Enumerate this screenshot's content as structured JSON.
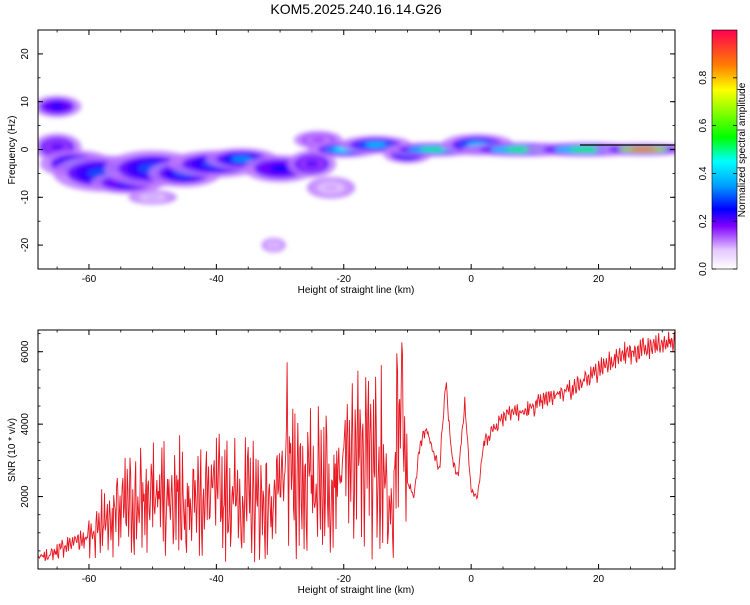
{
  "title": "KOM5.2025.240.16.14.G26",
  "chart_data": [
    {
      "type": "heatmap",
      "xlabel": "Height of straight line (km)",
      "ylabel": "Frequency (Hz)",
      "xlim": [
        -68,
        32
      ],
      "ylim": [
        -25,
        25
      ],
      "xticks": [
        -60,
        -40,
        -20,
        0,
        20
      ],
      "yticks": [
        -20,
        -10,
        0,
        10,
        20
      ],
      "colorbar": {
        "label": "Normalized spectral amplitude",
        "range": [
          0,
          1
        ],
        "ticks": [
          0.0,
          0.2,
          0.4,
          0.6,
          0.8
        ]
      },
      "blobs": [
        {
          "x": -65,
          "y": 9,
          "rx": 2,
          "ry": 1.2,
          "v": 0.25
        },
        {
          "x": -65,
          "y": 0.5,
          "rx": 2,
          "ry": 1.5,
          "v": 0.2
        },
        {
          "x": -62,
          "y": -3,
          "rx": 3,
          "ry": 1.5,
          "v": 0.3
        },
        {
          "x": -58,
          "y": -5,
          "rx": 4,
          "ry": 2,
          "v": 0.3
        },
        {
          "x": -54,
          "y": -7,
          "rx": 3,
          "ry": 1.2,
          "v": 0.25
        },
        {
          "x": -50,
          "y": -4,
          "rx": 4,
          "ry": 2,
          "v": 0.3
        },
        {
          "x": -45,
          "y": -5,
          "rx": 3,
          "ry": 1.5,
          "v": 0.3
        },
        {
          "x": -40,
          "y": -3,
          "rx": 4,
          "ry": 1.5,
          "v": 0.3
        },
        {
          "x": -36,
          "y": -2,
          "rx": 3,
          "ry": 1.2,
          "v": 0.35
        },
        {
          "x": -30,
          "y": -4,
          "rx": 3,
          "ry": 1.5,
          "v": 0.25
        },
        {
          "x": -25,
          "y": -3,
          "rx": 2,
          "ry": 1.5,
          "v": 0.2
        },
        {
          "x": -22,
          "y": -8,
          "rx": 2,
          "ry": 1.2,
          "v": 0.1
        },
        {
          "x": -24,
          "y": 2,
          "rx": 2,
          "ry": 1,
          "v": 0.15
        },
        {
          "x": -20,
          "y": 0,
          "rx": 3,
          "ry": 0.9,
          "v": 0.45
        },
        {
          "x": -15,
          "y": 1,
          "rx": 3,
          "ry": 1,
          "v": 0.4
        },
        {
          "x": -10,
          "y": -1,
          "rx": 2,
          "ry": 1,
          "v": 0.3
        },
        {
          "x": -6,
          "y": 0,
          "rx": 4,
          "ry": 0.8,
          "v": 0.5
        },
        {
          "x": 1,
          "y": 1,
          "rx": 3,
          "ry": 1.2,
          "v": 0.4
        },
        {
          "x": 8,
          "y": 0,
          "rx": 5,
          "ry": 0.8,
          "v": 0.55
        },
        {
          "x": 18,
          "y": 0,
          "rx": 5,
          "ry": 0.8,
          "v": 0.55
        },
        {
          "x": 27,
          "y": 0,
          "rx": 4,
          "ry": 0.7,
          "v": 0.9
        },
        {
          "x": -50,
          "y": -10,
          "rx": 2,
          "ry": 0.8,
          "v": 0.1
        },
        {
          "x": -31,
          "y": -20,
          "rx": 1,
          "ry": 0.8,
          "v": 0.1
        }
      ]
    },
    {
      "type": "line",
      "xlabel": "Height of straight line (km)",
      "ylabel": "SNR (10 * v/v)",
      "xlim": [
        -68,
        32
      ],
      "ylim": [
        0,
        6600
      ],
      "xticks": [
        -60,
        -40,
        -20,
        0,
        20
      ],
      "yticks": [
        2000,
        4000,
        6000
      ],
      "series": [
        {
          "name": "SNR",
          "color": "#e8141e",
          "x": [
            -68,
            -66,
            -64,
            -62,
            -60,
            -58,
            -56,
            -54,
            -52,
            -50,
            -48,
            -46,
            -44,
            -42,
            -40,
            -38,
            -36,
            -34,
            -32,
            -30,
            -29,
            -28,
            -26,
            -24,
            -22,
            -20,
            -18,
            -16,
            -14,
            -13,
            -12,
            -11,
            -10,
            -9,
            -8,
            -7,
            -6,
            -5,
            -4,
            -3,
            -2,
            -1,
            0,
            1,
            2,
            4,
            6,
            8,
            10,
            12,
            14,
            16,
            18,
            20,
            22,
            24,
            26,
            28,
            30,
            32
          ],
          "y": [
            300,
            400,
            600,
            800,
            900,
            1300,
            1500,
            1700,
            1800,
            2000,
            2000,
            2100,
            1900,
            2000,
            2000,
            2000,
            1900,
            1900,
            1700,
            2000,
            3000,
            2600,
            2400,
            2500,
            2600,
            2800,
            3000,
            3200,
            3400,
            1100,
            2600,
            4700,
            2400,
            2000,
            3500,
            3900,
            3300,
            2700,
            5200,
            3000,
            2600,
            4600,
            2200,
            2000,
            3500,
            4000,
            4400,
            4300,
            4500,
            4700,
            4900,
            5000,
            5200,
            5500,
            5800,
            5900,
            6000,
            6100,
            6200,
            6300
          ]
        }
      ]
    }
  ]
}
